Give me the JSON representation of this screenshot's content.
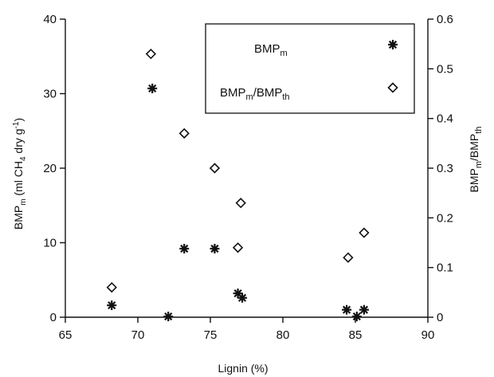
{
  "chart_data": {
    "type": "scatter",
    "xlabel": "Lignin (%)",
    "ylabel_left": {
      "base": "BMP",
      "sub": "m",
      "rest": " (ml CH",
      "sub2": "4",
      "rest2": " dry g",
      "sup": "-1",
      "rest3": ")"
    },
    "ylabel_right": {
      "base": "BMP",
      "sub": "m",
      "mid": "/BMP",
      "sub2": "th"
    },
    "xlim": [
      65,
      90
    ],
    "ylim_left": [
      0,
      40
    ],
    "ylim_right": [
      0,
      0.6
    ],
    "x_ticks": [
      "65",
      "70",
      "75",
      "80",
      "85",
      "90"
    ],
    "y_left_ticks": [
      "0",
      "10",
      "20",
      "30",
      "40"
    ],
    "y_right_ticks": [
      "0",
      "0.1",
      "0.2",
      "0.3",
      "0.4",
      "0.5",
      "0.6"
    ],
    "legend": {
      "placement": "top-right",
      "entries": [
        {
          "base": "BMP",
          "sub": "m",
          "mid": "",
          "sub2": "",
          "marker": "asterisk"
        },
        {
          "base": "BMP",
          "sub": "m",
          "mid": "/BMP",
          "sub2": "th",
          "marker": "diamond"
        }
      ]
    },
    "series": [
      {
        "marker": "asterisk",
        "axis": "left",
        "points": [
          {
            "x": 68.2,
            "y": 1.6
          },
          {
            "x": 71.0,
            "y": 30.7
          },
          {
            "x": 72.1,
            "y": 0.1
          },
          {
            "x": 73.2,
            "y": 9.2
          },
          {
            "x": 75.3,
            "y": 9.2
          },
          {
            "x": 76.9,
            "y": 3.2
          },
          {
            "x": 77.2,
            "y": 2.6
          },
          {
            "x": 84.4,
            "y": 1.0
          },
          {
            "x": 85.1,
            "y": 0.1
          },
          {
            "x": 85.6,
            "y": 1.0
          }
        ]
      },
      {
        "marker": "diamond",
        "axis": "right",
        "points": [
          {
            "x": 68.2,
            "y": 0.06
          },
          {
            "x": 70.9,
            "y": 0.53
          },
          {
            "x": 73.2,
            "y": 0.37
          },
          {
            "x": 75.3,
            "y": 0.3
          },
          {
            "x": 77.1,
            "y": 0.23
          },
          {
            "x": 76.9,
            "y": 0.14
          },
          {
            "x": 84.5,
            "y": 0.12
          },
          {
            "x": 85.6,
            "y": 0.17
          }
        ]
      }
    ],
    "grid": false
  }
}
